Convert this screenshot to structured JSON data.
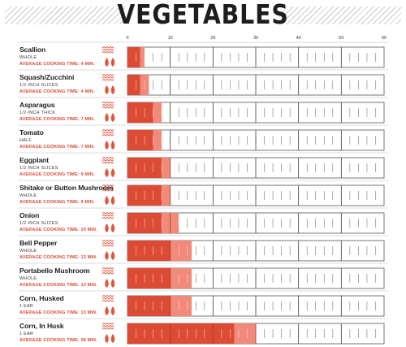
{
  "page": {
    "title": "VEGETABLES"
  },
  "chart_data": {
    "type": "bar",
    "title": "VEGETABLES",
    "xlim": [
      0,
      60
    ],
    "xticks": [
      0,
      10,
      20,
      30,
      40,
      50,
      60
    ],
    "grid": true,
    "colors": {
      "dark": "#dc4c34",
      "light": "#f28a7a",
      "border": "#555555",
      "heat": "#e0553b"
    },
    "rows": [
      {
        "name": "Scallion",
        "cut": "WHOLE",
        "avg": "AVERAGE COOKING TIME: 4 MIN.",
        "min": 3,
        "max": 4
      },
      {
        "name": "Squash/Zucchini",
        "cut": "1/2-INCH SLICES",
        "avg": "AVERAGE COOKING TIME: 4 MIN.",
        "min": 3,
        "max": 5
      },
      {
        "name": "Asparagus",
        "cut": "1/2-INCH THICK",
        "avg": "AVERAGE COOKING TIME: 7 MIN.",
        "min": 6,
        "max": 8
      },
      {
        "name": "Tomato",
        "cut": "HALF",
        "avg": "AVERAGE COOKING TIME: 7 MIN.",
        "min": 6,
        "max": 8
      },
      {
        "name": "Eggplant",
        "cut": "1/2-INCH SLICES",
        "avg": "AVERAGE COOKING TIME: 9 MIN.",
        "min": 8,
        "max": 10
      },
      {
        "name": "Shitake or Button Mushroom",
        "cut": "WHOLE",
        "avg": "AVERAGE COOKING TIME: 9 MIN.",
        "min": 8,
        "max": 10
      },
      {
        "name": "Onion",
        "cut": "1/2-INCH SLICES",
        "avg": "AVERAGE COOKING TIME: 10 MIN.",
        "min": 8,
        "max": 12
      },
      {
        "name": "Bell Pepper",
        "cut": "WHOLE",
        "avg": "AVERAGE COOKING TIME: 13 MIN.",
        "min": 10,
        "max": 15
      },
      {
        "name": "Portabello Mushroom",
        "cut": "WHOLE",
        "avg": "AVERAGE COOKING TIME: 13 MIN.",
        "min": 10,
        "max": 15
      },
      {
        "name": "Corn, Husked",
        "cut": "1 EAR",
        "avg": "AVERAGE COOKING TIME: 13 MIN.",
        "min": 10,
        "max": 15
      },
      {
        "name": "Corn, In Husk",
        "cut": "1 EAR",
        "avg": "AVERAGE COOKING TIME: 28 MIN.",
        "min": 25,
        "max": 30
      }
    ]
  }
}
